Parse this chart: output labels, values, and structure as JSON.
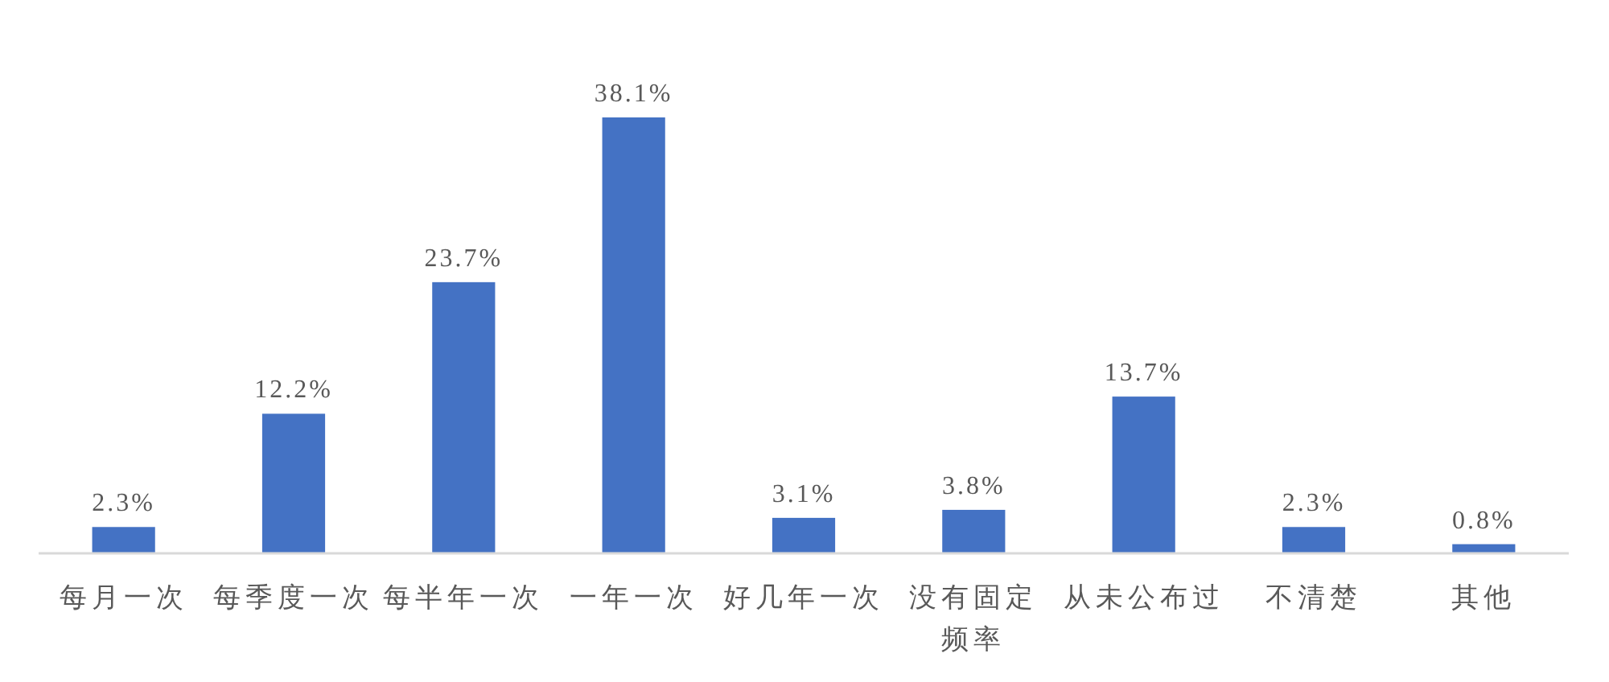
{
  "chart_data": {
    "type": "bar",
    "categories": [
      "每月一次",
      "每季度一次",
      "每半年一次",
      "一年一次",
      "好几年一次",
      "没有固定频率",
      "从未公布过",
      "不清楚",
      "其他"
    ],
    "values": [
      2.3,
      12.2,
      23.7,
      38.1,
      3.1,
      3.8,
      13.7,
      2.3,
      0.8
    ],
    "value_labels": [
      "2.3%",
      "12.2%",
      "23.7%",
      "38.1%",
      "3.1%",
      "3.8%",
      "13.7%",
      "2.3%",
      "0.8%"
    ],
    "color": "#4472c4"
  }
}
